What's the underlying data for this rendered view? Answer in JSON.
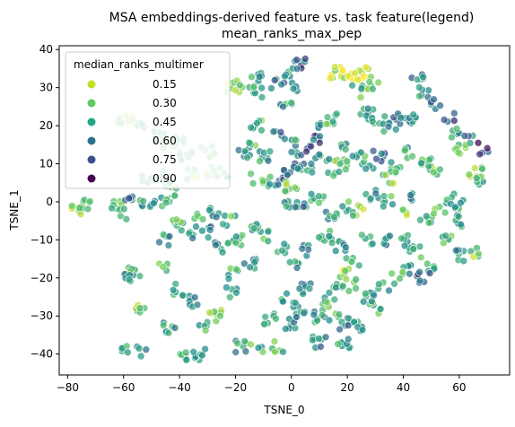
{
  "chart_data": {
    "type": "scatter",
    "title_line1": "MSA embeddings-derived feature vs. task feature(legend)",
    "title_line2": "mean_ranks_max_pep",
    "xlabel": "TSNE_0",
    "ylabel": "TSNE_1",
    "xlim": [
      -83,
      78
    ],
    "ylim": [
      -45.5,
      41
    ],
    "xticks": [
      -80,
      -60,
      -40,
      -20,
      0,
      20,
      40,
      60
    ],
    "yticks": [
      -40,
      -30,
      -20,
      -10,
      0,
      10,
      20,
      30,
      40
    ],
    "grid": false,
    "legend": {
      "title": "median_ranks_multimer",
      "placement": "top-left",
      "entries": [
        {
          "label": "0.15",
          "color": "#c2df23"
        },
        {
          "label": "0.30",
          "color": "#5ec962"
        },
        {
          "label": "0.45",
          "color": "#21a585"
        },
        {
          "label": "0.60",
          "color": "#2c728e"
        },
        {
          "label": "0.75",
          "color": "#3b518b"
        },
        {
          "label": "0.90",
          "color": "#440154"
        }
      ]
    },
    "clusters": [
      {
        "x": -77,
        "y": -2,
        "v": 0.2
      },
      {
        "x": -74,
        "y": -1,
        "v": 0.4
      },
      {
        "x": -63,
        "y": -0.5,
        "v": 0.4
      },
      {
        "x": -60,
        "y": -3,
        "v": 0.4
      },
      {
        "x": -57,
        "y": 0,
        "v": 0.6
      },
      {
        "x": -52,
        "y": -1,
        "v": 0.5
      },
      {
        "x": -48,
        "y": -0.5,
        "v": 0.5
      },
      {
        "x": -44,
        "y": 1,
        "v": 0.4
      },
      {
        "x": -60,
        "y": 22,
        "v": 0.3
      },
      {
        "x": -57,
        "y": 21,
        "v": 0.2
      },
      {
        "x": -53,
        "y": 20,
        "v": 0.5
      },
      {
        "x": -48,
        "y": 17,
        "v": 0.5
      },
      {
        "x": -44,
        "y": 15,
        "v": 0.3
      },
      {
        "x": -40,
        "y": 16,
        "v": 0.4
      },
      {
        "x": -38,
        "y": 12,
        "v": 0.5
      },
      {
        "x": -35,
        "y": 7,
        "v": 0.3
      },
      {
        "x": -30,
        "y": 13,
        "v": 0.4
      },
      {
        "x": -28,
        "y": 8,
        "v": 0.3
      },
      {
        "x": -25,
        "y": 8,
        "v": 0.5
      },
      {
        "x": -52,
        "y": 6,
        "v": 0.5
      },
      {
        "x": -48,
        "y": 7,
        "v": 0.5
      },
      {
        "x": -43,
        "y": 4,
        "v": 0.4
      },
      {
        "x": -21,
        "y": 30,
        "v": 0.2
      },
      {
        "x": -17,
        "y": 31,
        "v": 0.3
      },
      {
        "x": -13,
        "y": 33,
        "v": 0.5
      },
      {
        "x": -11,
        "y": 29,
        "v": 0.5
      },
      {
        "x": -5,
        "y": 31,
        "v": 0.6
      },
      {
        "x": -1,
        "y": 34,
        "v": 0.5
      },
      {
        "x": 3,
        "y": 36,
        "v": 0.7
      },
      {
        "x": 1,
        "y": 30,
        "v": 0.6
      },
      {
        "x": -2,
        "y": 25,
        "v": 0.5
      },
      {
        "x": -13,
        "y": 20,
        "v": 0.4
      },
      {
        "x": -17,
        "y": 13,
        "v": 0.5
      },
      {
        "x": -13,
        "y": 15,
        "v": 0.3
      },
      {
        "x": -10,
        "y": 12,
        "v": 0.5
      },
      {
        "x": -5,
        "y": 18,
        "v": 0.6
      },
      {
        "x": 0,
        "y": 15,
        "v": 0.5
      },
      {
        "x": 2,
        "y": 13,
        "v": 0.6
      },
      {
        "x": 7,
        "y": 14,
        "v": 0.8
      },
      {
        "x": 10,
        "y": 17,
        "v": 0.7
      },
      {
        "x": 12,
        "y": 20,
        "v": 0.5
      },
      {
        "x": 15,
        "y": 22,
        "v": 0.4
      },
      {
        "x": 16,
        "y": 34,
        "v": 0.2
      },
      {
        "x": 19,
        "y": 34,
        "v": 0.2
      },
      {
        "x": 23,
        "y": 33,
        "v": 0.1
      },
      {
        "x": 27,
        "y": 34,
        "v": 0.2
      },
      {
        "x": 29,
        "y": 31,
        "v": 0.3
      },
      {
        "x": 23,
        "y": 29,
        "v": 0.4
      },
      {
        "x": 27,
        "y": 23,
        "v": 0.5
      },
      {
        "x": 31,
        "y": 21,
        "v": 0.4
      },
      {
        "x": 35,
        "y": 20,
        "v": 0.5
      },
      {
        "x": 39,
        "y": 22,
        "v": 0.6
      },
      {
        "x": 43,
        "y": 22,
        "v": 0.5
      },
      {
        "x": 45,
        "y": 33,
        "v": 0.6
      },
      {
        "x": 47,
        "y": 29,
        "v": 0.5
      },
      {
        "x": 52,
        "y": 26,
        "v": 0.6
      },
      {
        "x": 56,
        "y": 22,
        "v": 0.7
      },
      {
        "x": 58,
        "y": 18,
        "v": 0.5
      },
      {
        "x": 60,
        "y": 14,
        "v": 0.3
      },
      {
        "x": 63,
        "y": 16,
        "v": 0.6
      },
      {
        "x": 68,
        "y": 14,
        "v": 0.8
      },
      {
        "x": 66,
        "y": 8,
        "v": 0.3
      },
      {
        "x": 68,
        "y": 6,
        "v": 0.4
      },
      {
        "x": 52,
        "y": 8,
        "v": 0.3
      },
      {
        "x": 48,
        "y": 10,
        "v": 0.4
      },
      {
        "x": 43,
        "y": 13,
        "v": 0.5
      },
      {
        "x": 38,
        "y": 9,
        "v": 0.4
      },
      {
        "x": 35,
        "y": 6,
        "v": 0.3
      },
      {
        "x": 31,
        "y": 12,
        "v": 0.6
      },
      {
        "x": 27,
        "y": 10,
        "v": 0.5
      },
      {
        "x": 24,
        "y": 13,
        "v": 0.4
      },
      {
        "x": 20,
        "y": 14,
        "v": 0.5
      },
      {
        "x": 18,
        "y": 10,
        "v": 0.3
      },
      {
        "x": 15,
        "y": 7,
        "v": 0.4
      },
      {
        "x": 11,
        "y": 11,
        "v": 0.5
      },
      {
        "x": 6,
        "y": 9,
        "v": 0.5
      },
      {
        "x": 2,
        "y": 9,
        "v": 0.6
      },
      {
        "x": -2,
        "y": 7,
        "v": 0.7
      },
      {
        "x": -7,
        "y": 5,
        "v": 0.5
      },
      {
        "x": -12,
        "y": 6,
        "v": 0.4
      },
      {
        "x": 0,
        "y": 4,
        "v": 0.3
      },
      {
        "x": 0,
        "y": 0,
        "v": 0.5
      },
      {
        "x": 3,
        "y": -2,
        "v": 0.6
      },
      {
        "x": 9,
        "y": 1,
        "v": 0.4
      },
      {
        "x": 14,
        "y": -3,
        "v": 0.5
      },
      {
        "x": 19,
        "y": -1,
        "v": 0.4
      },
      {
        "x": 24,
        "y": -2,
        "v": 0.3
      },
      {
        "x": 29,
        "y": 2,
        "v": 0.5
      },
      {
        "x": 34,
        "y": 0,
        "v": 0.4
      },
      {
        "x": 39,
        "y": -3,
        "v": 0.3
      },
      {
        "x": 45,
        "y": 1,
        "v": 0.5
      },
      {
        "x": 48,
        "y": -4,
        "v": 0.4
      },
      {
        "x": 53,
        "y": -2,
        "v": 0.3
      },
      {
        "x": 57,
        "y": 1,
        "v": 0.5
      },
      {
        "x": 60,
        "y": -1,
        "v": 0.4
      },
      {
        "x": 59,
        "y": -5,
        "v": 0.5
      },
      {
        "x": 56,
        "y": -10,
        "v": 0.4
      },
      {
        "x": 60,
        "y": -14,
        "v": 0.5
      },
      {
        "x": 65,
        "y": -13,
        "v": 0.3
      },
      {
        "x": 51,
        "y": -17,
        "v": 0.4
      },
      {
        "x": 47,
        "y": -20,
        "v": 0.7
      },
      {
        "x": 42,
        "y": -18,
        "v": 0.5
      },
      {
        "x": 38,
        "y": -20,
        "v": 0.4
      },
      {
        "x": 44,
        "y": -13,
        "v": 0.4
      },
      {
        "x": 40,
        "y": -10,
        "v": 0.5
      },
      {
        "x": 35,
        "y": -10,
        "v": 0.6
      },
      {
        "x": 33,
        "y": -22,
        "v": 0.5
      },
      {
        "x": 30,
        "y": -28,
        "v": 0.4
      },
      {
        "x": 27,
        "y": -25,
        "v": 0.5
      },
      {
        "x": 23,
        "y": -22,
        "v": 0.4
      },
      {
        "x": 19,
        "y": -19,
        "v": 0.2
      },
      {
        "x": 16,
        "y": -23,
        "v": 0.5
      },
      {
        "x": 13,
        "y": -26,
        "v": 0.4
      },
      {
        "x": 10,
        "y": -30,
        "v": 0.5
      },
      {
        "x": 15,
        "y": -31,
        "v": 0.4
      },
      {
        "x": 19,
        "y": -32,
        "v": 0.6
      },
      {
        "x": 24,
        "y": -33,
        "v": 0.5
      },
      {
        "x": 19,
        "y": -37,
        "v": 0.5
      },
      {
        "x": 10,
        "y": -37,
        "v": 0.6
      },
      {
        "x": 0,
        "y": -32,
        "v": 0.5
      },
      {
        "x": 3,
        "y": -29,
        "v": 0.5
      },
      {
        "x": -1,
        "y": -25,
        "v": 0.4
      },
      {
        "x": 5,
        "y": -23,
        "v": 0.6
      },
      {
        "x": 1,
        "y": -17,
        "v": 0.5
      },
      {
        "x": 6,
        "y": -13,
        "v": 0.6
      },
      {
        "x": 12,
        "y": -9,
        "v": 0.4
      },
      {
        "x": 17,
        "y": -12,
        "v": 0.5
      },
      {
        "x": 22,
        "y": -16,
        "v": 0.3
      },
      {
        "x": 27,
        "y": -10,
        "v": 0.5
      },
      {
        "x": -4,
        "y": -12,
        "v": 0.5
      },
      {
        "x": -9,
        "y": -9,
        "v": 0.4
      },
      {
        "x": -14,
        "y": -7,
        "v": 0.5
      },
      {
        "x": -20,
        "y": -10,
        "v": 0.4
      },
      {
        "x": -25,
        "y": -12,
        "v": 0.5
      },
      {
        "x": -30,
        "y": -8,
        "v": 0.6
      },
      {
        "x": -36,
        "y": -8,
        "v": 0.5
      },
      {
        "x": -41,
        "y": -6,
        "v": 0.4
      },
      {
        "x": -45,
        "y": -10,
        "v": 0.5
      },
      {
        "x": -33,
        "y": -4,
        "v": 0.4
      },
      {
        "x": -27,
        "y": -3,
        "v": 0.5
      },
      {
        "x": -22,
        "y": -5,
        "v": 0.4
      },
      {
        "x": -15,
        "y": -16,
        "v": 0.5
      },
      {
        "x": -20,
        "y": -19,
        "v": 0.4
      },
      {
        "x": -22,
        "y": -24,
        "v": 0.5
      },
      {
        "x": -27,
        "y": -30,
        "v": 0.3
      },
      {
        "x": -31,
        "y": -33,
        "v": 0.4
      },
      {
        "x": -36,
        "y": -26,
        "v": 0.6
      },
      {
        "x": -41,
        "y": -23,
        "v": 0.5
      },
      {
        "x": -45,
        "y": -17,
        "v": 0.4
      },
      {
        "x": -56,
        "y": -18,
        "v": 0.4
      },
      {
        "x": -60,
        "y": -20,
        "v": 0.5
      },
      {
        "x": -55,
        "y": -28,
        "v": 0.3
      },
      {
        "x": -44,
        "y": -33,
        "v": 0.5
      },
      {
        "x": -59,
        "y": -38,
        "v": 0.4
      },
      {
        "x": -54,
        "y": -39,
        "v": 0.5
      },
      {
        "x": -39,
        "y": -41,
        "v": 0.4
      },
      {
        "x": -33,
        "y": -40,
        "v": 0.5
      },
      {
        "x": -18,
        "y": -38,
        "v": 0.5
      },
      {
        "x": -12,
        "y": -38,
        "v": 0.4
      },
      {
        "x": -5,
        "y": -38,
        "v": 0.4
      },
      {
        "x": -8,
        "y": -31,
        "v": 0.5
      }
    ]
  }
}
